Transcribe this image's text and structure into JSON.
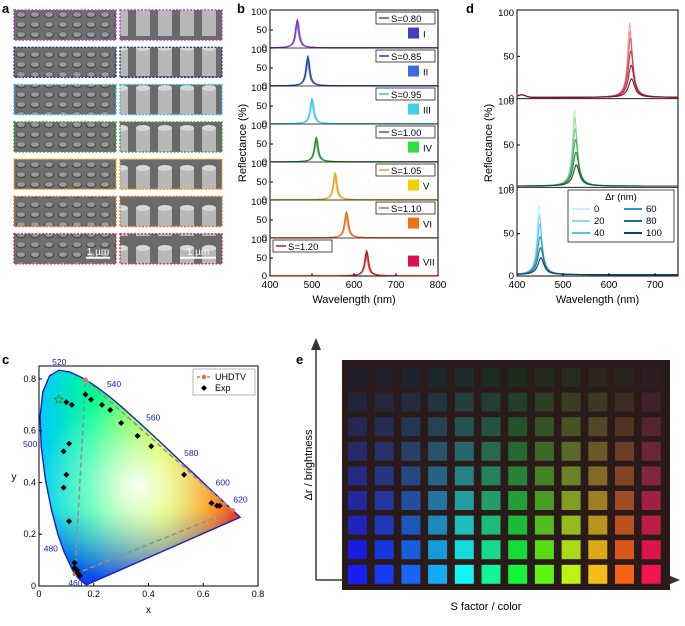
{
  "panel_letters": [
    "a",
    "b",
    "c",
    "d",
    "e"
  ],
  "sem": {
    "border_colors": [
      "#b040c8",
      "#2c3a9c",
      "#30c0e0",
      "#30a040",
      "#f0a020",
      "#e07030",
      "#d03040"
    ],
    "scale_left": "1 µm",
    "scale_right": "1 µm"
  },
  "chart_data": [
    {
      "panel": "b",
      "type": "line",
      "xlabel": "Wavelength (nm)",
      "ylabel": "Reflectance (%)",
      "xlim": [
        400,
        800
      ],
      "ylim": [
        0,
        100
      ],
      "x_ticks": [
        400,
        500,
        600,
        700,
        800
      ],
      "y_ticks": [
        0,
        50,
        100
      ],
      "series": [
        {
          "name": "S=0.80",
          "roman": "I",
          "peak_nm": 465,
          "peak_pct": 78,
          "width_nm": 10,
          "color": "#7a2fc8",
          "swatch": "#3f3fc0"
        },
        {
          "name": "S=0.85",
          "roman": "II",
          "peak_nm": 490,
          "peak_pct": 82,
          "width_nm": 10,
          "color": "#1a3fb0",
          "swatch": "#3f6ae0"
        },
        {
          "name": "S=0.95",
          "roman": "III",
          "peak_nm": 500,
          "peak_pct": 70,
          "width_nm": 10,
          "color": "#38c8e8",
          "swatch": "#40d0e8"
        },
        {
          "name": "S=1.00",
          "roman": "IV",
          "peak_nm": 510,
          "peak_pct": 68,
          "width_nm": 10,
          "color": "#1a8a28",
          "swatch": "#30e040"
        },
        {
          "name": "S=1.05",
          "roman": "V",
          "peak_nm": 555,
          "peak_pct": 75,
          "width_nm": 10,
          "color": "#e8a020",
          "swatch": "#f0d000"
        },
        {
          "name": "S=1.10",
          "roman": "VI",
          "peak_nm": 582,
          "peak_pct": 72,
          "width_nm": 10,
          "color": "#e86818",
          "swatch": "#f07020"
        },
        {
          "name": "S=1.20",
          "roman": "VII",
          "peak_nm": 630,
          "peak_pct": 70,
          "width_nm": 10,
          "color": "#c01818",
          "swatch": "#e01050"
        }
      ]
    },
    {
      "panel": "d",
      "type": "line",
      "xlabel": "Wavelength (nm)",
      "ylabel": "Reflectance (%)",
      "xlim": [
        400,
        750
      ],
      "ylim": [
        0,
        100
      ],
      "x_ticks": [
        400,
        500,
        600,
        700
      ],
      "y_ticks": [
        0,
        50,
        100
      ],
      "legend_title": "Δr (nm)",
      "delta_r": [
        0,
        20,
        40,
        60,
        80,
        100
      ],
      "legend_colors": [
        "#c8eef8",
        "#90dcf0",
        "#50c4ec",
        "#2a9cc8",
        "#1a6e96",
        "#0c4458"
      ],
      "sub_panels": [
        {
          "peak_nm": 645,
          "peaks_pct": [
            88,
            78,
            70,
            55,
            38,
            22
          ],
          "palette": [
            "#f4b0b8",
            "#ec8c98",
            "#e0606e",
            "#c84050",
            "#a02838",
            "#701820"
          ]
        },
        {
          "peak_nm": 525,
          "peaks_pct": [
            90,
            80,
            68,
            55,
            40,
            25
          ],
          "palette": [
            "#c8ecc8",
            "#a4dca8",
            "#78c888",
            "#4aa868",
            "#2a8048",
            "#145030"
          ]
        },
        {
          "peak_nm": 448,
          "peaks_pct": [
            82,
            70,
            60,
            45,
            32,
            20
          ],
          "palette": [
            "#c8eef8",
            "#90dcf0",
            "#50c4ec",
            "#2a9cc8",
            "#1a6e96",
            "#0c4458"
          ]
        }
      ]
    },
    {
      "panel": "c",
      "type": "scatter",
      "xlabel": "x",
      "ylabel": "y",
      "xlim": [
        0,
        0.8
      ],
      "ylim": [
        0,
        0.85
      ],
      "x_ticks": [
        0,
        0.2,
        0.4,
        0.6,
        0.8
      ],
      "y_ticks": [
        0,
        0.2,
        0.4,
        0.6,
        0.8
      ],
      "x_tick_labels": [
        "0",
        "0.2",
        "0.4",
        "0.6",
        "0.8"
      ],
      "y_tick_labels": [
        "0",
        "0.2",
        "0.4",
        "0.6",
        "0.8"
      ],
      "legend": [
        "UHDTV",
        "Exp"
      ],
      "locus": [
        [
          0.1741,
          0.005
        ],
        [
          0.1666,
          0.0089
        ],
        [
          0.144,
          0.0297
        ],
        [
          0.1241,
          0.0578
        ],
        [
          0.0913,
          0.1327
        ],
        [
          0.0687,
          0.2007
        ],
        [
          0.0454,
          0.295
        ],
        [
          0.0235,
          0.4127
        ],
        [
          0.0082,
          0.5384
        ],
        [
          0.0039,
          0.6548
        ],
        [
          0.0139,
          0.7502
        ],
        [
          0.0389,
          0.812
        ],
        [
          0.0743,
          0.8338
        ],
        [
          0.1142,
          0.8262
        ],
        [
          0.1547,
          0.8059
        ],
        [
          0.1929,
          0.7816
        ],
        [
          0.2296,
          0.7543
        ],
        [
          0.2658,
          0.7243
        ],
        [
          0.3016,
          0.6923
        ],
        [
          0.3373,
          0.6589
        ],
        [
          0.3731,
          0.6245
        ],
        [
          0.4087,
          0.5896
        ],
        [
          0.4441,
          0.5547
        ],
        [
          0.4788,
          0.5202
        ],
        [
          0.5125,
          0.4866
        ],
        [
          0.5448,
          0.4544
        ],
        [
          0.5752,
          0.4242
        ],
        [
          0.6029,
          0.3965
        ],
        [
          0.627,
          0.3725
        ],
        [
          0.6482,
          0.3514
        ],
        [
          0.6658,
          0.334
        ],
        [
          0.6915,
          0.3083
        ],
        [
          0.7079,
          0.292
        ],
        [
          0.7347,
          0.2653
        ]
      ],
      "wavelength_labels": [
        {
          "nm": "460",
          "x": 0.144,
          "y": 0.03
        },
        {
          "nm": "480",
          "x": 0.091,
          "y": 0.133
        },
        {
          "nm": "500",
          "x": 0.008,
          "y": 0.538
        },
        {
          "nm": "520",
          "x": 0.074,
          "y": 0.834
        },
        {
          "nm": "540",
          "x": 0.23,
          "y": 0.754
        },
        {
          "nm": "560",
          "x": 0.373,
          "y": 0.624
        },
        {
          "nm": "580",
          "x": 0.512,
          "y": 0.487
        },
        {
          "nm": "600",
          "x": 0.627,
          "y": 0.373
        },
        {
          "nm": "620",
          "x": 0.692,
          "y": 0.308
        }
      ],
      "uhdtv": [
        [
          0.708,
          0.292
        ],
        [
          0.17,
          0.797
        ],
        [
          0.131,
          0.046
        ]
      ],
      "exp": [
        [
          0.1,
          0.71
        ],
        [
          0.12,
          0.7
        ],
        [
          0.17,
          0.74
        ],
        [
          0.19,
          0.72
        ],
        [
          0.23,
          0.7
        ],
        [
          0.26,
          0.68
        ],
        [
          0.3,
          0.63
        ],
        [
          0.36,
          0.58
        ],
        [
          0.41,
          0.54
        ],
        [
          0.53,
          0.43
        ],
        [
          0.63,
          0.32
        ],
        [
          0.65,
          0.31
        ],
        [
          0.66,
          0.31
        ],
        [
          0.11,
          0.55
        ],
        [
          0.09,
          0.52
        ],
        [
          0.1,
          0.43
        ],
        [
          0.09,
          0.38
        ],
        [
          0.11,
          0.25
        ],
        [
          0.13,
          0.09
        ],
        [
          0.13,
          0.07
        ],
        [
          0.14,
          0.05
        ],
        [
          0.15,
          0.04
        ],
        [
          0.14,
          0.06
        ]
      ],
      "star": [
        0.072,
        0.72
      ]
    }
  ],
  "panel_e": {
    "y_axis_label": "Δr / brightness",
    "x_axis_label": "S factor / color",
    "rows": 9,
    "cols": 12
  }
}
